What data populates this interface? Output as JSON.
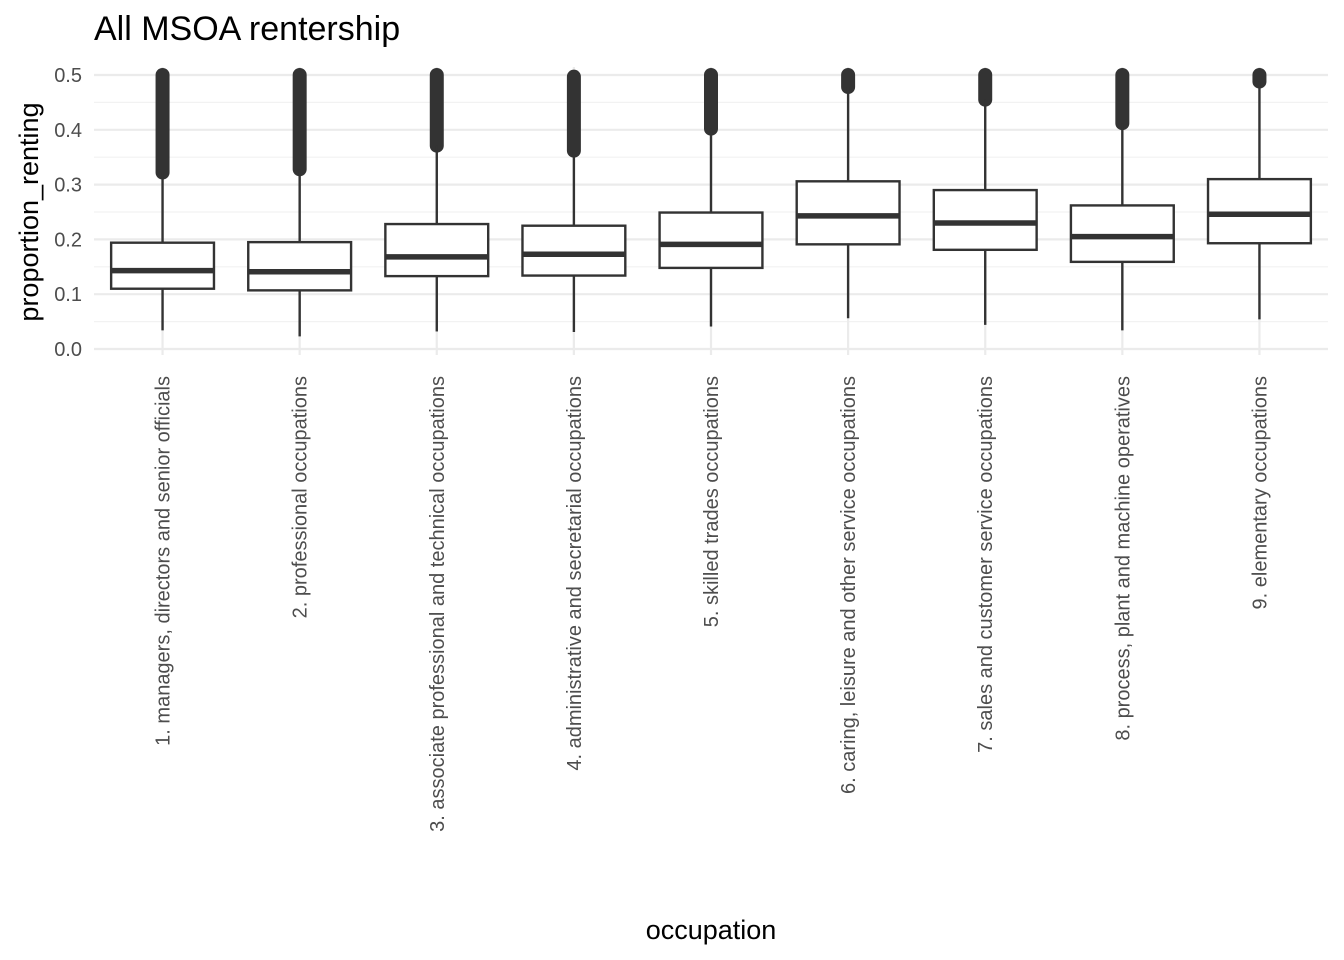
{
  "chart_data": {
    "type": "boxplot",
    "title": "All MSOA rentership",
    "xlabel": "occupation",
    "ylabel": "proportion_renting",
    "ylim": [
      0,
      0.5
    ],
    "yticks": [
      "0.0",
      "0.1",
      "0.2",
      "0.3",
      "0.4",
      "0.5"
    ],
    "yticks_values": [
      0,
      0.1,
      0.2,
      0.3,
      0.4,
      0.5
    ],
    "grid": true,
    "categories": [
      "1. managers, directors and senior officials",
      "2. professional occupations",
      "3. associate professional and technical occupations",
      "4. administrative and secretarial occupations",
      "5. skilled trades occupations",
      "6. caring, leisure and other service occupations",
      "7. sales and customer service occupations",
      "8. process, plant and machine operatives",
      "9. elementary occupations"
    ],
    "boxes": [
      {
        "whisker_low": 0.034,
        "q1": 0.11,
        "median": 0.143,
        "q3": 0.194,
        "whisker_high": 0.322,
        "outlier_min": 0.322,
        "outlier_max": 0.5
      },
      {
        "whisker_low": 0.023,
        "q1": 0.107,
        "median": 0.141,
        "q3": 0.195,
        "whisker_high": 0.328,
        "outlier_min": 0.328,
        "outlier_max": 0.5
      },
      {
        "whisker_low": 0.032,
        "q1": 0.133,
        "median": 0.168,
        "q3": 0.228,
        "whisker_high": 0.371,
        "outlier_min": 0.371,
        "outlier_max": 0.5
      },
      {
        "whisker_low": 0.031,
        "q1": 0.134,
        "median": 0.173,
        "q3": 0.225,
        "whisker_high": 0.362,
        "outlier_min": 0.362,
        "outlier_max": 0.497
      },
      {
        "whisker_low": 0.041,
        "q1": 0.148,
        "median": 0.191,
        "q3": 0.249,
        "whisker_high": 0.402,
        "outlier_min": 0.402,
        "outlier_max": 0.5
      },
      {
        "whisker_low": 0.056,
        "q1": 0.191,
        "median": 0.243,
        "q3": 0.306,
        "whisker_high": 0.478,
        "outlier_min": 0.478,
        "outlier_max": 0.5
      },
      {
        "whisker_low": 0.044,
        "q1": 0.181,
        "median": 0.23,
        "q3": 0.29,
        "whisker_high": 0.455,
        "outlier_min": 0.455,
        "outlier_max": 0.5
      },
      {
        "whisker_low": 0.034,
        "q1": 0.159,
        "median": 0.205,
        "q3": 0.262,
        "whisker_high": 0.412,
        "outlier_min": 0.412,
        "outlier_max": 0.5
      },
      {
        "whisker_low": 0.054,
        "q1": 0.193,
        "median": 0.246,
        "q3": 0.31,
        "whisker_high": 0.488,
        "outlier_min": 0.488,
        "outlier_max": 0.5
      }
    ]
  }
}
